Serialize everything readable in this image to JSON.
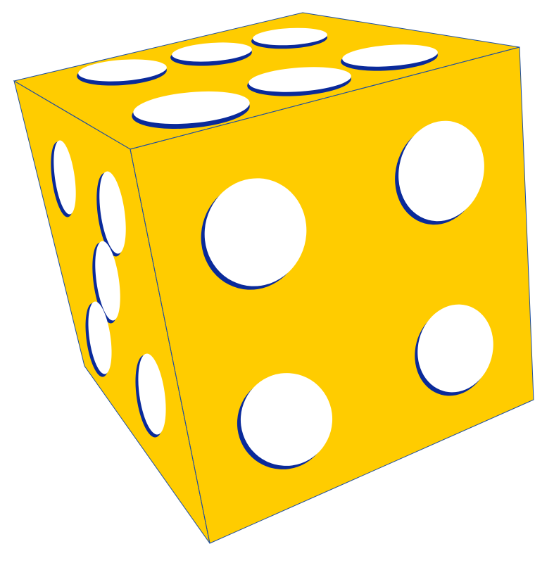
{
  "die": {
    "top_face_pips": 6,
    "front_face_pips": 4,
    "side_face_pips": 5,
    "colors": {
      "face": "#FFCC00",
      "pip_hole": "#FFFFFF",
      "pip_rim": "#0A2A9A",
      "edge": "#1F4FA0",
      "background": "#FFFFFF"
    }
  }
}
